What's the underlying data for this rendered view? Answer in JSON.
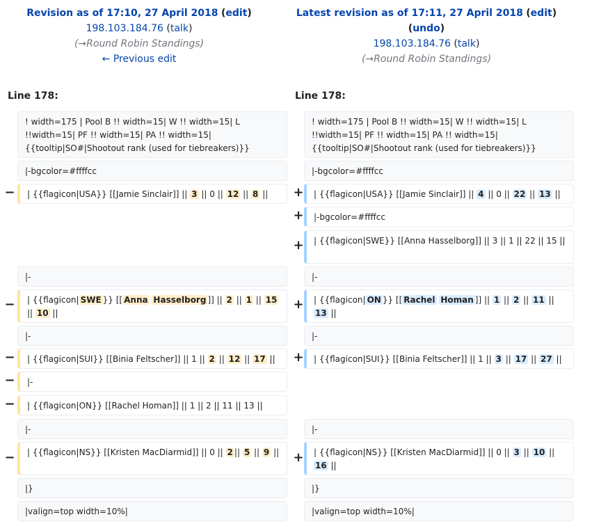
{
  "left_header": {
    "title": "Revision as of 17:10, 27 April 2018",
    "edit": "edit",
    "user": "198.103.184.76",
    "talk": "talk",
    "comment": "(→Round Robin Standings)",
    "prev": "← Previous edit"
  },
  "right_header": {
    "title": "Latest revision as of 17:11, 27 April 2018",
    "edit": "edit",
    "undo": "undo",
    "user": "198.103.184.76",
    "talk": "talk",
    "comment": "(→Round Robin Standings)"
  },
  "line_left": "Line 178:",
  "line_right": "Line 178:",
  "markers": {
    "del": "−",
    "add": "+"
  },
  "ctx": {
    "header": "! width=175 | Pool B !! width=15| W !! width=15| L !!width=15| PF !! width=15| PA !! width=15| {{tooltip|SO#|Shootout rank (used for tiebreakers)}}",
    "bgcolor": "|-bgcolor=#ffffcc",
    "sep": "|-",
    "close": "|}",
    "valign": "|valign=top width=10%|"
  },
  "diff": {
    "l1": [
      "|  {{flagicon|USA}} [[Jamie Sinclair]] || ",
      "3",
      " || 0 || ",
      "12",
      " || ",
      "8",
      " ||"
    ],
    "r1": [
      "|  {{flagicon|USA}} [[Jamie Sinclair]] || ",
      "4",
      " || 0 || ",
      "22",
      " || ",
      "13",
      " ||"
    ],
    "r2": "|-bgcolor=#ffffcc",
    "r3": "|  {{flagicon|SWE}} [[Anna Hasselborg]] || 3 || 1 || 22 || 15 ||",
    "l4": [
      "|  {{flagicon|",
      "SWE",
      "}} [[",
      "Anna",
      " ",
      "Hasselborg",
      "]] || ",
      "2",
      " || ",
      "1",
      " || ",
      "15",
      " || ",
      "10",
      " ||"
    ],
    "r4": [
      "|  {{flagicon|",
      "ON",
      "}} [[",
      "Rachel",
      " ",
      "Homan",
      "]] || ",
      "1",
      " || ",
      "2",
      " || ",
      "11",
      " || ",
      "13",
      " ||"
    ],
    "l5": [
      "|  {{flagicon|SUI}} [[Binia Feltscher]] || 1 || ",
      "2",
      " || ",
      "12",
      " || ",
      "17",
      " ||"
    ],
    "r5": [
      "|  {{flagicon|SUI}} [[Binia Feltscher]] || 1 || ",
      "3",
      " || ",
      "17",
      " || ",
      "27",
      " ||"
    ],
    "l6": "|-",
    "l7": "|  {{flagicon|ON}} [[Rachel Homan]] || 1 || 2 || 11 || 13 ||",
    "l8": [
      "| {{flagicon|NS}} [[Kristen MacDiarmid]] || 0 || ",
      "2",
      "|| ",
      "5",
      " || ",
      "9",
      " ||"
    ],
    "r8": [
      "| {{flagicon|NS}} [[Kristen MacDiarmid]] || 0 || ",
      "3",
      " || ",
      "10",
      " || ",
      "16",
      " ||"
    ]
  }
}
